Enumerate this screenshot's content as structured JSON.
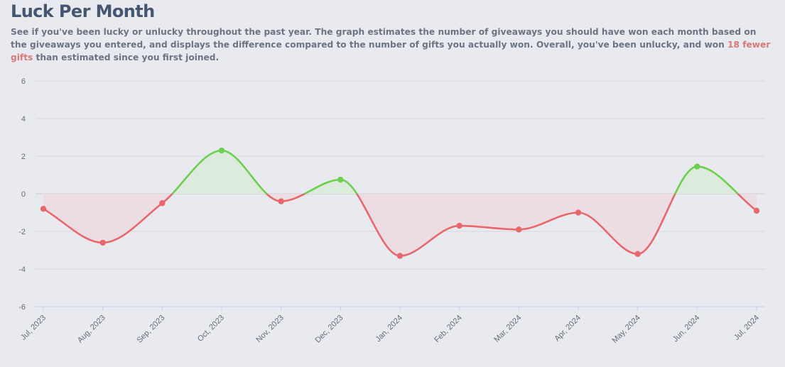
{
  "header": {
    "title": "Luck Per Month",
    "description_before": "See if you've been lucky or unlucky throughout the past year. The graph estimates the number of giveaways you should have won each month based on the giveaways you entered, and displays the difference compared to the number of gifts you actually won. Overall, you've been unlucky, and won ",
    "description_highlight": "18 fewer gifts",
    "description_after": " than estimated since you first joined."
  },
  "colors": {
    "positive_line": "#6dcf4f",
    "negative_line": "#e8676b",
    "positive_fill": "#dcebdc",
    "negative_fill": "#ecdde3",
    "grid": "#d6d8de",
    "zero_line": "#c9cbd1",
    "x_axis": "#c8cde8"
  },
  "chart_data": {
    "type": "area",
    "title": "",
    "xlabel": "",
    "ylabel": "",
    "ylim": [
      -6,
      6
    ],
    "yticks": [
      6,
      4,
      2,
      0,
      -2,
      -4,
      -6
    ],
    "grid": true,
    "legend": "none",
    "categories": [
      "Jul, 2023",
      "Aug, 2023",
      "Sep, 2023",
      "Oct, 2023",
      "Nov, 2023",
      "Dec, 2023",
      "Jan, 2024",
      "Feb, 2024",
      "Mar, 2024",
      "Apr, 2024",
      "May, 2024",
      "Jun, 2024",
      "Jul, 2024"
    ],
    "series": [
      {
        "values": [
          -0.8,
          -2.6,
          -0.5,
          2.3,
          -0.4,
          0.75,
          -3.3,
          -1.7,
          -1.9,
          -1.0,
          -3.2,
          1.45,
          -0.9
        ]
      }
    ]
  }
}
